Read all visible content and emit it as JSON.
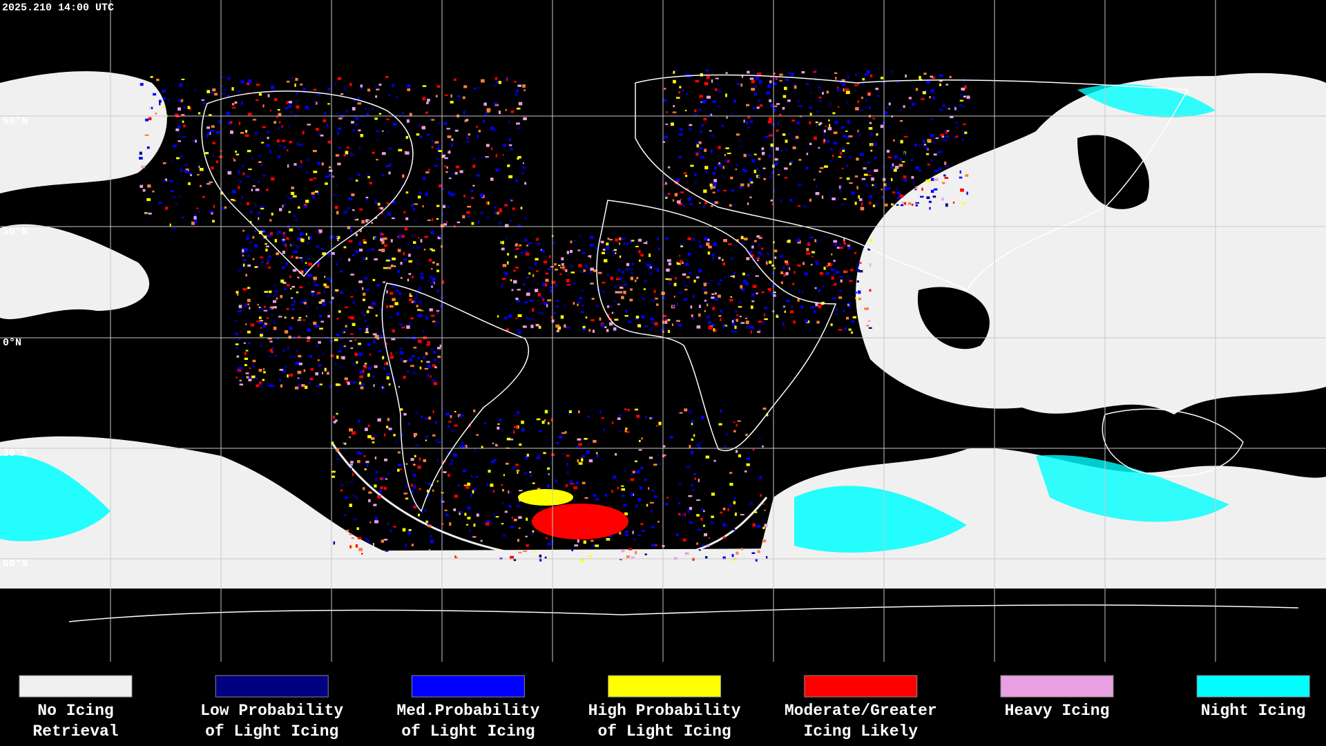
{
  "header": {
    "timestamp": "2025.210 14:00 UTC"
  },
  "map": {
    "lat_labels": [
      "60°N",
      "30°N",
      "0°N",
      "30°S",
      "60°S"
    ]
  },
  "legend": [
    {
      "label": [
        "No Icing",
        "Retrieval"
      ],
      "color": "#f0f0f0"
    },
    {
      "label": [
        "Low Probability",
        "of Light Icing"
      ],
      "color": "#000080"
    },
    {
      "label": [
        "Med.Probability",
        "of Light Icing"
      ],
      "color": "#0000ff"
    },
    {
      "label": [
        "High Probability",
        "of Light Icing"
      ],
      "color": "#ffff00"
    },
    {
      "label": [
        "Moderate/Greater",
        "Icing Likely"
      ],
      "color": "#ff0000"
    },
    {
      "label": [
        "Heavy Icing"
      ],
      "color": "#e8a0e0"
    },
    {
      "label": [
        "Night Icing"
      ],
      "color": "#00ffff"
    }
  ]
}
